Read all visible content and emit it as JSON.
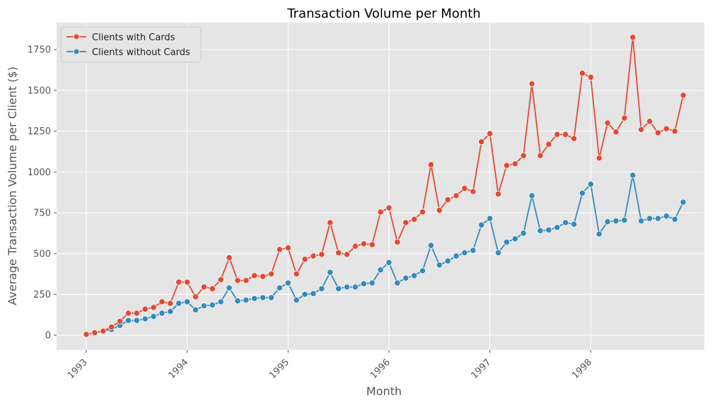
{
  "chart_data": {
    "type": "line",
    "title": "Transaction Volume per Month",
    "xlabel": "Month",
    "ylabel": "Average Transaction Volume per Client ($)",
    "x_start": "1993-01",
    "x_tick_labels": [
      "1993",
      "1994",
      "1995",
      "1996",
      "1997",
      "1998"
    ],
    "y_ticks": [
      0,
      250,
      500,
      750,
      1000,
      1250,
      1500,
      1750
    ],
    "y_tick_labels": [
      "0",
      "250",
      "500",
      "750",
      "1000",
      "1250",
      "1500",
      "1750"
    ],
    "ylim": [
      -90,
      1915
    ],
    "grid": true,
    "legend_position": "top-left",
    "series": [
      {
        "name": "Clients with Cards",
        "color": "#E24A33",
        "values": [
          5,
          15,
          25,
          50,
          85,
          135,
          135,
          160,
          170,
          205,
          195,
          325,
          325,
          235,
          295,
          285,
          340,
          475,
          335,
          335,
          365,
          360,
          375,
          525,
          535,
          375,
          465,
          485,
          495,
          690,
          505,
          495,
          545,
          560,
          555,
          755,
          780,
          570,
          690,
          710,
          755,
          1045,
          765,
          830,
          855,
          900,
          880,
          1185,
          1235,
          865,
          1040,
          1050,
          1100,
          1540,
          1100,
          1170,
          1230,
          1230,
          1205,
          1605,
          1580,
          1085,
          1300,
          1245,
          1330,
          1825,
          1260,
          1310,
          1240,
          1265,
          1250,
          1470
        ]
      },
      {
        "name": "Clients without Cards",
        "color": "#348ABD",
        "values": [
          5,
          15,
          25,
          35,
          60,
          90,
          90,
          100,
          115,
          135,
          145,
          195,
          205,
          155,
          180,
          185,
          205,
          290,
          210,
          215,
          225,
          230,
          230,
          290,
          320,
          215,
          250,
          255,
          285,
          385,
          285,
          295,
          295,
          315,
          320,
          400,
          445,
          320,
          350,
          365,
          395,
          550,
          430,
          455,
          485,
          505,
          520,
          675,
          715,
          505,
          570,
          590,
          625,
          855,
          640,
          645,
          660,
          690,
          680,
          870,
          925,
          620,
          695,
          700,
          705,
          980,
          700,
          715,
          715,
          730,
          710,
          815
        ]
      }
    ]
  }
}
